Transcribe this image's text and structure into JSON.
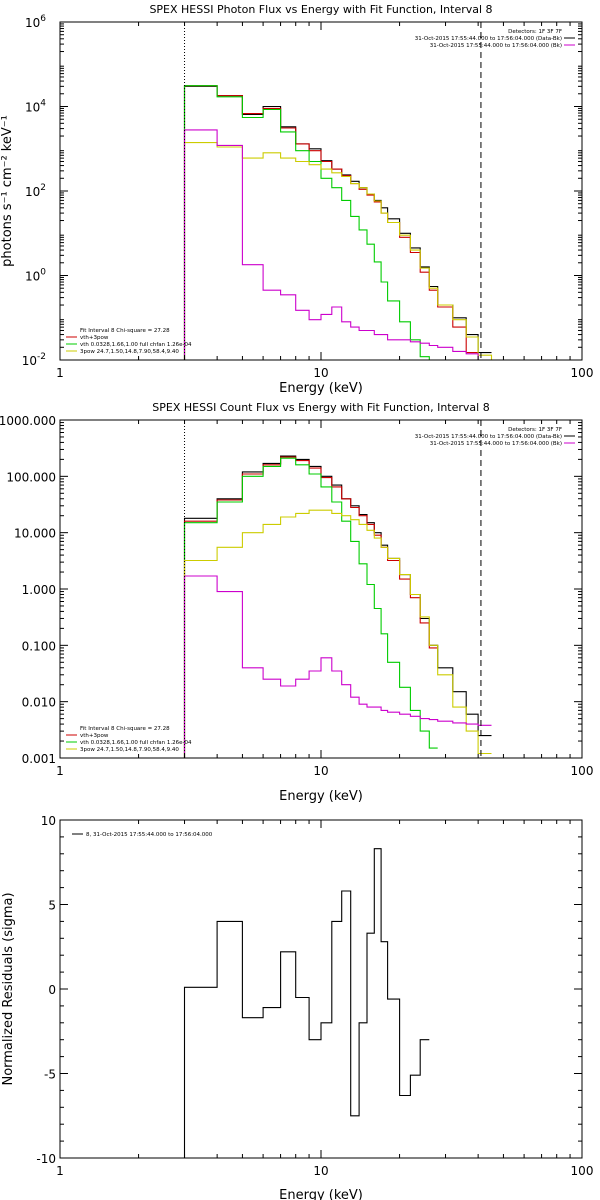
{
  "chart_data": [
    {
      "type": "line",
      "title": "SPEX HESSI Photon Flux vs Energy with Fit Function, Interval 8",
      "xlabel": "Energy (keV)",
      "ylabel": "photons s⁻¹ cm⁻² keV⁻¹",
      "xscale": "log",
      "yscale": "log",
      "xlim": [
        1,
        100
      ],
      "ylim": [
        0.01,
        1000000
      ],
      "x_ticks": [
        {
          "v": 1,
          "label": "1"
        },
        {
          "v": 10,
          "label": "10"
        },
        {
          "v": 100,
          "label": "100"
        }
      ],
      "y_ticks": [
        {
          "v": 0.01,
          "label": "10",
          "exp": "-2"
        },
        {
          "v": 1,
          "label": "10",
          "exp": "0"
        },
        {
          "v": 100,
          "label": "10",
          "exp": "2"
        },
        {
          "v": 10000,
          "label": "10",
          "exp": "4"
        },
        {
          "v": 1000000,
          "label": "10",
          "exp": "6"
        }
      ],
      "vlines": [
        {
          "x": 3.0,
          "style": "dotted"
        },
        {
          "x": 41,
          "style": "dashed"
        }
      ],
      "legend_top_right": [
        {
          "text": "Detectors: 1F 3F 7F",
          "color": null
        },
        {
          "text": "31-Oct-2015 17:55:44.000 to 17:56:04.000 (Data-Bk)",
          "color": "#000000"
        },
        {
          "text": "31-Oct-2015 17:55:44.000 to 17:56:04.000 (Bk)",
          "color": "#cc00cc"
        }
      ],
      "legend_bottom_left": [
        {
          "text": "Fit Interval 8   Chi-square = 27.28",
          "color": null
        },
        {
          "text": "vth+3pow",
          "color": "#cc0000"
        },
        {
          "text": "vth 0.0328,1.66,1.00  full chfan 1.26e-04",
          "color": "#00cc00"
        },
        {
          "text": "3pow 24.7,1.50,14.8,7.90,58.4,9.40",
          "color": "#cccc00"
        }
      ],
      "edges": [
        3,
        4,
        5,
        6,
        7,
        8,
        9,
        10,
        11,
        12,
        13,
        14,
        15,
        16,
        17,
        18,
        20,
        22,
        24,
        26,
        28,
        32,
        36,
        40,
        45,
        50,
        56
      ],
      "series": [
        {
          "name": "Data-Bk",
          "color": "#000000",
          "values": [
            30000,
            18000,
            6500,
            10000,
            3300,
            1300,
            1000,
            520,
            330,
            240,
            170,
            120,
            85,
            60,
            40,
            22,
            10,
            4.5,
            1.6,
            0.55,
            0.2,
            0.1,
            0.04,
            0.015
          ]
        },
        {
          "name": "vth+3pow",
          "color": "#cc0000",
          "values": [
            31000,
            18000,
            6800,
            9000,
            3100,
            1300,
            900,
            500,
            330,
            230,
            150,
            110,
            80,
            55,
            30,
            18,
            8,
            3.5,
            1.2,
            0.45,
            0.18,
            0.06,
            0.015
          ]
        },
        {
          "name": "vth",
          "color": "#00cc00",
          "values": [
            31000,
            17000,
            5500,
            8500,
            2500,
            900,
            500,
            200,
            120,
            60,
            25,
            12,
            5.5,
            2.1,
            0.7,
            0.25,
            0.08,
            0.03,
            0.012,
            0.005
          ]
        },
        {
          "name": "3pow",
          "color": "#cccc00",
          "values": [
            1400,
            1100,
            600,
            800,
            600,
            500,
            420,
            330,
            270,
            220,
            150,
            120,
            85,
            58,
            30,
            18,
            9,
            4,
            1.5,
            0.5,
            0.2,
            0.09,
            0.035,
            0.013,
            0.006
          ]
        },
        {
          "name": "Bk",
          "color": "#cc00cc",
          "values": [
            2800,
            1200,
            1.8,
            0.45,
            0.35,
            0.15,
            0.09,
            0.12,
            0.18,
            0.08,
            0.06,
            0.05,
            0.05,
            0.04,
            0.04,
            0.03,
            0.03,
            0.027,
            0.025,
            0.022,
            0.02,
            0.016,
            0.014,
            0.001
          ]
        }
      ]
    },
    {
      "type": "line",
      "title": "SPEX HESSI Count Flux vs Energy with Fit Function, Interval 8",
      "xlabel": "Energy (keV)",
      "ylabel": "",
      "xscale": "log",
      "yscale": "log",
      "xlim": [
        1,
        100
      ],
      "ylim": [
        0.001,
        1000
      ],
      "x_ticks": [
        {
          "v": 1,
          "label": "1"
        },
        {
          "v": 10,
          "label": "10"
        },
        {
          "v": 100,
          "label": "100"
        }
      ],
      "y_ticks": [
        {
          "v": 0.001,
          "label": "0.001"
        },
        {
          "v": 0.01,
          "label": "0.010"
        },
        {
          "v": 0.1,
          "label": "0.100"
        },
        {
          "v": 1,
          "label": "1.000"
        },
        {
          "v": 10,
          "label": "10.000"
        },
        {
          "v": 100,
          "label": "100.000"
        },
        {
          "v": 1000,
          "label": "1000.000"
        }
      ],
      "vlines": [
        {
          "x": 3.0,
          "style": "dotted"
        },
        {
          "x": 41,
          "style": "dashed"
        }
      ],
      "legend_top_right": [
        {
          "text": "Detectors: 1F 3F 7F",
          "color": null
        },
        {
          "text": "31-Oct-2015 17:55:44.000 to 17:56:04.000 (Data-Bk)",
          "color": "#000000"
        },
        {
          "text": "31-Oct-2015 17:55:44.000 to 17:56:04.000 (Bk)",
          "color": "#cc00cc"
        }
      ],
      "legend_bottom_left": [
        {
          "text": "Fit Interval 8   Chi-square = 27.28",
          "color": null
        },
        {
          "text": "vth+3pow",
          "color": "#cc0000"
        },
        {
          "text": "vth 0.0328,1.66,1.00  full chfan 1.26e-04",
          "color": "#00cc00"
        },
        {
          "text": "3pow 24.7,1.50,14.8,7.90,58.4,9.40",
          "color": "#cccc00"
        }
      ],
      "edges": [
        3,
        4,
        5,
        6,
        7,
        8,
        9,
        10,
        11,
        12,
        13,
        14,
        15,
        16,
        17,
        18,
        20,
        22,
        24,
        26,
        28,
        32,
        36,
        40,
        45,
        50,
        56
      ],
      "series": [
        {
          "name": "Data-Bk",
          "color": "#000000",
          "values": [
            18,
            40,
            120,
            170,
            230,
            200,
            150,
            100,
            70,
            40,
            30,
            21,
            15,
            10,
            6,
            3.5,
            1.8,
            0.8,
            0.3,
            0.1,
            0.04,
            0.015,
            0.006,
            0.0025
          ]
        },
        {
          "name": "vth+3pow",
          "color": "#cc0000",
          "values": [
            16,
            38,
            110,
            160,
            220,
            190,
            140,
            95,
            65,
            40,
            28,
            20,
            14,
            9,
            5.5,
            3.2,
            1.5,
            0.7,
            0.25,
            0.09
          ]
        },
        {
          "name": "vth",
          "color": "#00cc00",
          "values": [
            15,
            35,
            100,
            150,
            210,
            160,
            110,
            65,
            35,
            16,
            7,
            2.8,
            1.2,
            0.45,
            0.16,
            0.05,
            0.018,
            0.007,
            0.003,
            0.0015
          ]
        },
        {
          "name": "3pow",
          "color": "#cccc00",
          "values": [
            3.2,
            5.5,
            10,
            14,
            19,
            22,
            25,
            25,
            22,
            20,
            17,
            14,
            11,
            8,
            5.5,
            3.5,
            1.8,
            0.8,
            0.32,
            0.1,
            0.03,
            0.008,
            0.003,
            0.0012
          ]
        },
        {
          "name": "Bk",
          "color": "#cc00cc",
          "values": [
            1.7,
            0.9,
            0.04,
            0.025,
            0.019,
            0.025,
            0.035,
            0.06,
            0.035,
            0.02,
            0.012,
            0.009,
            0.008,
            0.008,
            0.007,
            0.0065,
            0.006,
            0.0055,
            0.005,
            0.0048,
            0.0045,
            0.0042,
            0.004,
            0.0038
          ]
        }
      ]
    },
    {
      "type": "line",
      "title": "",
      "xlabel": "Energy (keV)",
      "ylabel": "Normalized Residuals (sigma)",
      "xscale": "log",
      "yscale": "linear",
      "xlim": [
        1,
        100
      ],
      "ylim": [
        -10,
        10
      ],
      "x_ticks": [
        {
          "v": 1,
          "label": "1"
        },
        {
          "v": 10,
          "label": "10"
        },
        {
          "v": 100,
          "label": "100"
        }
      ],
      "y_ticks": [
        {
          "v": -10,
          "label": "-10"
        },
        {
          "v": -5,
          "label": "-5"
        },
        {
          "v": 0,
          "label": "0"
        },
        {
          "v": 5,
          "label": "5"
        },
        {
          "v": 10,
          "label": "10"
        }
      ],
      "legend_top_left": [
        {
          "text": "8, 31-Oct-2015 17:55:44.000 to 17:56:04.000",
          "color": "#000000"
        }
      ],
      "edges": [
        3,
        4,
        5,
        6,
        7,
        8,
        9,
        10,
        11,
        12,
        13,
        14,
        15,
        16,
        17,
        18,
        20,
        22,
        24,
        26,
        28,
        32,
        36,
        40
      ],
      "series": [
        {
          "name": "",
          "color": "#000000",
          "values": [
            0.1,
            4.0,
            -1.7,
            -1.1,
            2.2,
            -0.5,
            -3.0,
            -2.0,
            4.0,
            5.8,
            -7.5,
            -2.0,
            3.3,
            8.3,
            2.8,
            -0.6,
            -6.3,
            -5.1,
            -3.0
          ]
        }
      ]
    }
  ]
}
